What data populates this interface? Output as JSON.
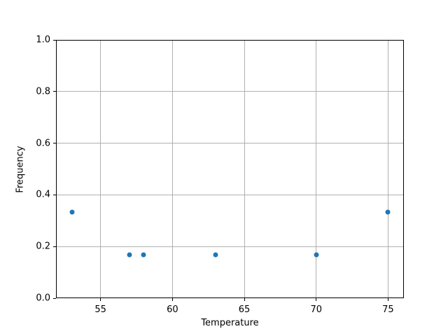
{
  "chart_data": {
    "type": "scatter",
    "title": "",
    "xlabel": "Temperature",
    "ylabel": "Frequency",
    "x": [
      53,
      57,
      58,
      63,
      70,
      75
    ],
    "y": [
      0.3333,
      0.1667,
      0.1667,
      0.1667,
      0.1667,
      0.3333
    ],
    "xlim": [
      51.9,
      76.1
    ],
    "ylim": [
      0.0,
      1.0
    ],
    "xticks": [
      55,
      60,
      65,
      70,
      75
    ],
    "xtick_labels": [
      "55",
      "60",
      "65",
      "70",
      "75"
    ],
    "yticks": [
      0.0,
      0.2,
      0.4,
      0.6,
      0.8,
      1.0
    ],
    "ytick_labels": [
      "0.0",
      "0.2",
      "0.4",
      "0.6",
      "0.8",
      "1.0"
    ],
    "grid": true,
    "legend": null,
    "marker_color": "#1f77b4",
    "grid_color": "#b0b0b0",
    "spine_color": "#000000",
    "background_color": "#ffffff"
  },
  "layout_note": ""
}
